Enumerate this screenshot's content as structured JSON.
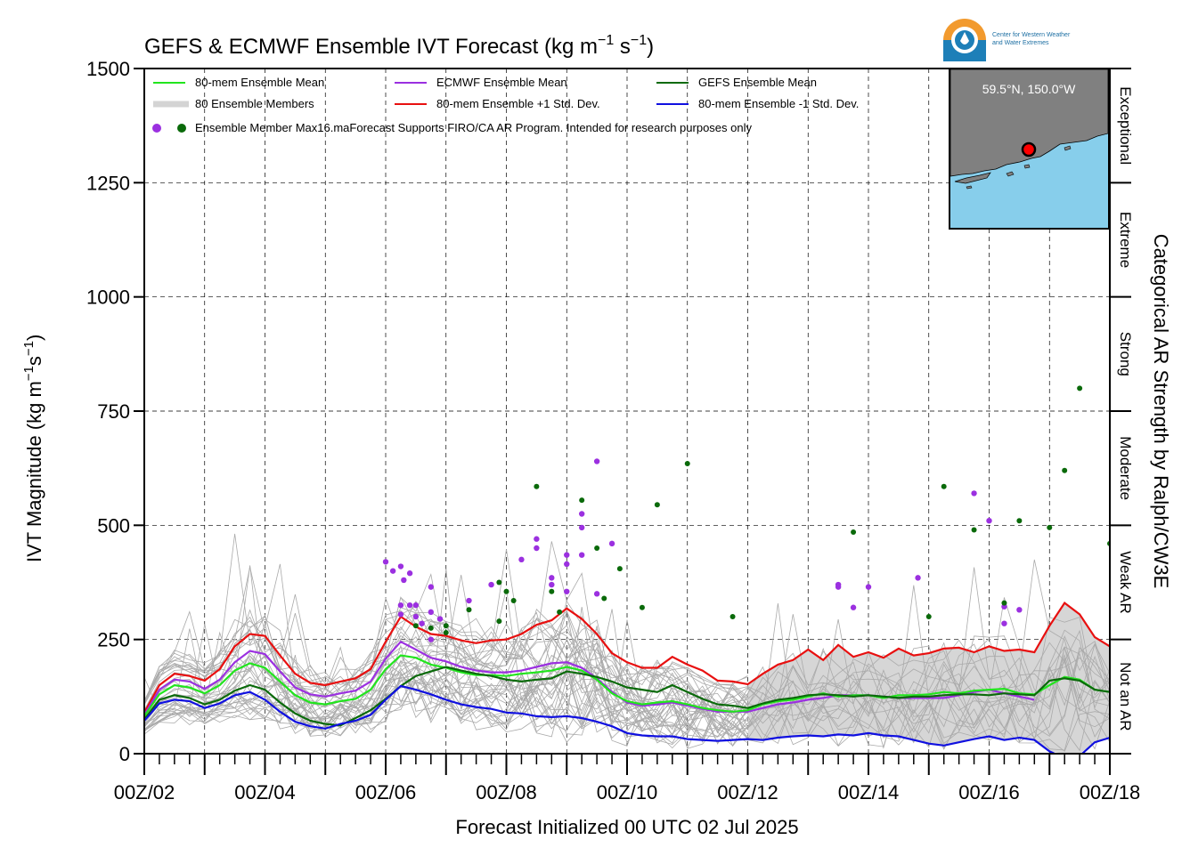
{
  "chart_data": {
    "type": "line",
    "title": "GEFS & ECMWF Ensemble IVT Forecast (kg m",
    "title_sup1": "−1",
    "title_mid": " s",
    "title_sup2": "−1",
    "title_end": ")",
    "ylabel": "IVT Magnitude (kg m",
    "ylabel_sup1": "−1",
    "ylabel_mid": "s",
    "ylabel_sup2": "−1",
    "ylabel_end": ")",
    "xlabel": "Forecast Initialized 00 UTC 02 Jul 2025",
    "right_label": "Categorical AR Strength by Ralph/CW3E",
    "ylim": [
      0,
      1500
    ],
    "xlim_days": [
      2,
      18
    ],
    "y_ticks": [
      "0",
      "250",
      "500",
      "750",
      "1000",
      "1250",
      "1500"
    ],
    "x_ticks": [
      "00Z/02",
      "00Z/04",
      "00Z/06",
      "00Z/08",
      "00Z/10",
      "00Z/12",
      "00Z/14",
      "00Z/16",
      "00Z/18"
    ],
    "categories": [
      {
        "label": "Not an AR",
        "from": 0,
        "to": 250
      },
      {
        "label": "Weak AR",
        "from": 250,
        "to": 500
      },
      {
        "label": "Moderate",
        "from": 500,
        "to": 750
      },
      {
        "label": "Strong",
        "from": 750,
        "to": 1000
      },
      {
        "label": "Extreme",
        "from": 1000,
        "to": 1250
      },
      {
        "label": "Exceptional",
        "from": 1250,
        "to": 1500
      }
    ],
    "legend": [
      {
        "label": "80-mem Ensemble Mean",
        "color": "#22e51e",
        "kind": "line"
      },
      {
        "label": "ECMWF Ensemble Mean",
        "color": "#9b30e0",
        "kind": "line"
      },
      {
        "label": "GEFS Ensemble Mean",
        "color": "#0a6a0a",
        "kind": "line"
      },
      {
        "label": "80 Ensemble Members",
        "color": "#aaaaaa",
        "kind": "members"
      },
      {
        "label": "80-mem Ensemble +1 Std. Dev.",
        "color": "#e81010",
        "kind": "line"
      },
      {
        "label": "80-mem Ensemble -1 Std. Dev.",
        "color": "#1010e0",
        "kind": "line"
      }
    ],
    "legend_note": "Ensemble Member Max16.maForecast Supports FIRO/CA AR Program. Intended for research purposes only",
    "inset_location": "59.5°N, 150.0°W",
    "logo_text_1": "Center for Western Weather",
    "logo_text_2": "and Water Extremes",
    "x_days": [
      2.0,
      2.25,
      2.5,
      2.75,
      3.0,
      3.25,
      3.5,
      3.75,
      4.0,
      4.25,
      4.5,
      4.75,
      5.0,
      5.25,
      5.5,
      5.75,
      6.0,
      6.25,
      6.5,
      6.75,
      7.0,
      7.25,
      7.5,
      7.75,
      8.0,
      8.25,
      8.5,
      8.75,
      9.0,
      9.25,
      9.5,
      9.75,
      10.0,
      10.25,
      10.5,
      10.75,
      11.0,
      11.25,
      11.5,
      11.75,
      12.0
    ],
    "series": [
      {
        "name": "80-mem Ensemble +1 Std. Dev.",
        "color": "#e81010",
        "x": [
          2.0,
          2.25,
          2.5,
          2.75,
          3.0,
          3.25,
          3.5,
          3.75,
          4.0,
          4.25,
          4.5,
          4.75,
          5.0,
          5.25,
          5.5,
          5.75,
          6.0,
          6.25,
          6.5,
          6.75,
          7.0,
          7.25,
          7.5,
          7.75,
          8.0,
          8.25,
          8.5,
          8.75,
          9.0,
          9.25,
          9.5,
          9.75,
          10.0,
          10.25,
          10.5,
          10.75,
          11.0,
          11.25,
          11.5,
          11.75,
          12.0,
          12.25,
          12.5,
          12.75,
          13.0,
          13.25,
          13.5,
          13.75,
          14.0,
          14.25,
          14.5,
          14.75,
          15.0,
          15.25,
          15.5,
          15.75,
          16.0,
          16.25,
          16.5,
          16.75,
          17.0,
          17.25,
          17.5,
          17.75,
          18.0
        ],
        "values": [
          90,
          150,
          175,
          170,
          160,
          185,
          235,
          262,
          258,
          215,
          175,
          155,
          150,
          158,
          165,
          185,
          245,
          300,
          278,
          262,
          258,
          248,
          242,
          248,
          250,
          262,
          282,
          292,
          318,
          295,
          262,
          220,
          200,
          188,
          188,
          212,
          195,
          182,
          160,
          158,
          152,
          175,
          195,
          205,
          228,
          205,
          238,
          212,
          222,
          210,
          230,
          215,
          220,
          230,
          232,
          222,
          235,
          225,
          228,
          222,
          280,
          330,
          305,
          255,
          235
        ]
      },
      {
        "name": "ECMWF Ensemble Mean",
        "color": "#9b30e0",
        "x": [
          2.0,
          2.25,
          2.5,
          2.75,
          3.0,
          3.25,
          3.5,
          3.75,
          4.0,
          4.25,
          4.5,
          4.75,
          5.0,
          5.25,
          5.5,
          5.75,
          6.0,
          6.25,
          6.5,
          6.75,
          7.0,
          7.25,
          7.5,
          7.75,
          8.0,
          8.25,
          8.5,
          8.75,
          9.0,
          9.25,
          9.5,
          9.75,
          10.0,
          10.25,
          10.5,
          10.75,
          11.0,
          11.25,
          11.5,
          11.75,
          12.0,
          12.25,
          12.5,
          12.75,
          13.0,
          13.25,
          13.5,
          13.75,
          14.0,
          14.25,
          14.5,
          14.75,
          15.0,
          15.25,
          15.5,
          15.75,
          16.0,
          16.25,
          16.5,
          16.75
        ],
        "values": [
          85,
          140,
          162,
          158,
          142,
          162,
          200,
          225,
          218,
          180,
          145,
          130,
          125,
          132,
          138,
          158,
          208,
          245,
          228,
          210,
          202,
          190,
          182,
          178,
          178,
          182,
          190,
          198,
          200,
          188,
          165,
          135,
          112,
          105,
          108,
          112,
          105,
          98,
          92,
          92,
          92,
          100,
          108,
          112,
          118,
          122,
          128,
          128,
          128,
          125,
          122,
          122,
          122,
          122,
          128,
          135,
          140,
          132,
          125,
          118
        ]
      },
      {
        "name": "80-mem Ensemble Mean",
        "color": "#22e51e",
        "x": [
          2.0,
          2.25,
          2.5,
          2.75,
          3.0,
          3.25,
          3.5,
          3.75,
          4.0,
          4.25,
          4.5,
          4.75,
          5.0,
          5.25,
          5.5,
          5.75,
          6.0,
          6.25,
          6.5,
          6.75,
          7.0,
          7.25,
          7.5,
          7.75,
          8.0,
          8.25,
          8.5,
          8.75,
          9.0,
          9.25,
          9.5,
          9.75,
          10.0,
          10.25,
          10.5,
          10.75,
          11.0,
          11.25,
          11.5,
          11.75,
          12.0,
          12.25,
          12.5,
          12.75,
          13.0,
          13.25,
          13.5,
          13.75,
          14.0,
          14.25,
          14.5,
          14.75,
          15.0,
          15.25,
          15.5,
          15.75,
          16.0,
          16.25,
          16.5,
          16.75,
          17.0,
          17.25,
          17.5,
          17.75,
          18.0
        ],
        "values": [
          82,
          130,
          150,
          145,
          132,
          150,
          182,
          198,
          188,
          158,
          128,
          112,
          108,
          115,
          120,
          140,
          185,
          215,
          210,
          195,
          188,
          178,
          172,
          172,
          170,
          175,
          178,
          182,
          190,
          182,
          162,
          132,
          115,
          108,
          112,
          115,
          108,
          100,
          95,
          92,
          95,
          108,
          115,
          118,
          125,
          132,
          125,
          128,
          128,
          122,
          128,
          128,
          130,
          135,
          132,
          138,
          140,
          142,
          132,
          130,
          150,
          168,
          162,
          140,
          135
        ]
      },
      {
        "name": "GEFS Ensemble Mean",
        "color": "#0a6a0a",
        "x": [
          2.0,
          2.25,
          2.5,
          2.75,
          3.0,
          3.25,
          3.5,
          3.75,
          4.0,
          4.25,
          4.5,
          4.75,
          5.0,
          5.25,
          5.5,
          5.75,
          6.0,
          6.25,
          6.5,
          6.75,
          7.0,
          7.25,
          7.5,
          7.75,
          8.0,
          8.25,
          8.5,
          8.75,
          9.0,
          9.25,
          9.5,
          9.75,
          10.0,
          10.25,
          10.5,
          10.75,
          11.0,
          11.25,
          11.5,
          11.75,
          12.0,
          12.25,
          12.5,
          12.75,
          13.0,
          13.25,
          13.5,
          13.75,
          14.0,
          14.25,
          14.5,
          14.75,
          15.0,
          15.25,
          15.5,
          15.75,
          16.0,
          16.25,
          16.5,
          16.75,
          17.0,
          17.25,
          17.5,
          17.75,
          18.0
        ],
        "values": [
          75,
          118,
          128,
          122,
          108,
          118,
          138,
          150,
          140,
          112,
          88,
          72,
          65,
          62,
          78,
          95,
          120,
          148,
          170,
          180,
          190,
          182,
          175,
          170,
          162,
          158,
          162,
          165,
          180,
          175,
          168,
          158,
          145,
          140,
          135,
          150,
          135,
          120,
          108,
          105,
          100,
          110,
          118,
          122,
          128,
          130,
          128,
          125,
          128,
          125,
          122,
          125,
          125,
          128,
          130,
          130,
          128,
          132,
          130,
          128,
          160,
          165,
          160,
          140,
          135
        ]
      },
      {
        "name": "80-mem Ensemble -1 Std. Dev.",
        "color": "#1010e0",
        "x": [
          2.0,
          2.25,
          2.5,
          2.75,
          3.0,
          3.25,
          3.5,
          3.75,
          4.0,
          4.25,
          4.5,
          4.75,
          5.0,
          5.25,
          5.5,
          5.75,
          6.0,
          6.25,
          6.5,
          6.75,
          7.0,
          7.25,
          7.5,
          7.75,
          8.0,
          8.25,
          8.5,
          8.75,
          9.0,
          9.25,
          9.5,
          9.75,
          10.0,
          10.25,
          10.5,
          10.75,
          11.0,
          11.25,
          11.5,
          11.75,
          12.0,
          12.25,
          12.5,
          12.75,
          13.0,
          13.25,
          13.5,
          13.75,
          14.0,
          14.25,
          14.5,
          14.75,
          15.0,
          15.25,
          15.5,
          15.75,
          16.0,
          16.25,
          16.5,
          16.75,
          17.0,
          17.25,
          17.5,
          17.75,
          18.0
        ],
        "values": [
          72,
          110,
          118,
          115,
          100,
          110,
          128,
          135,
          118,
          92,
          70,
          60,
          55,
          65,
          72,
          85,
          118,
          148,
          140,
          130,
          118,
          108,
          102,
          98,
          90,
          88,
          82,
          80,
          82,
          78,
          70,
          60,
          45,
          40,
          38,
          38,
          32,
          30,
          28,
          30,
          32,
          30,
          35,
          38,
          40,
          38,
          42,
          40,
          45,
          40,
          38,
          30,
          22,
          18,
          25,
          32,
          38,
          30,
          35,
          30,
          5,
          -10,
          -5,
          25,
          35
        ]
      }
    ],
    "max_points_ecmwf": [
      {
        "x": 6.0,
        "y": 420
      },
      {
        "x": 6.12,
        "y": 400
      },
      {
        "x": 6.25,
        "y": 410
      },
      {
        "x": 6.3,
        "y": 380
      },
      {
        "x": 6.4,
        "y": 395
      },
      {
        "x": 6.4,
        "y": 325
      },
      {
        "x": 6.25,
        "y": 325
      },
      {
        "x": 6.25,
        "y": 305
      },
      {
        "x": 6.5,
        "y": 325
      },
      {
        "x": 6.5,
        "y": 300
      },
      {
        "x": 6.6,
        "y": 285
      },
      {
        "x": 6.75,
        "y": 365
      },
      {
        "x": 6.75,
        "y": 310
      },
      {
        "x": 6.75,
        "y": 250
      },
      {
        "x": 6.9,
        "y": 295
      },
      {
        "x": 7.38,
        "y": 335
      },
      {
        "x": 7.75,
        "y": 370
      },
      {
        "x": 8.25,
        "y": 425
      },
      {
        "x": 8.5,
        "y": 470
      },
      {
        "x": 8.5,
        "y": 450
      },
      {
        "x": 8.75,
        "y": 385
      },
      {
        "x": 8.75,
        "y": 370
      },
      {
        "x": 9.0,
        "y": 435
      },
      {
        "x": 9.0,
        "y": 415
      },
      {
        "x": 9.0,
        "y": 355
      },
      {
        "x": 9.25,
        "y": 525
      },
      {
        "x": 9.25,
        "y": 495
      },
      {
        "x": 9.25,
        "y": 435
      },
      {
        "x": 9.5,
        "y": 640
      },
      {
        "x": 9.5,
        "y": 350
      },
      {
        "x": 9.75,
        "y": 460
      },
      {
        "x": 13.5,
        "y": 370
      },
      {
        "x": 13.5,
        "y": 365
      },
      {
        "x": 13.75,
        "y": 320
      },
      {
        "x": 14.0,
        "y": 365
      },
      {
        "x": 14.82,
        "y": 385
      },
      {
        "x": 15.75,
        "y": 570
      },
      {
        "x": 16.0,
        "y": 510
      },
      {
        "x": 16.25,
        "y": 322
      },
      {
        "x": 16.25,
        "y": 285
      },
      {
        "x": 16.5,
        "y": 315
      }
    ],
    "max_points_gefs": [
      {
        "x": 6.5,
        "y": 280
      },
      {
        "x": 6.75,
        "y": 275
      },
      {
        "x": 7.0,
        "y": 280
      },
      {
        "x": 7.0,
        "y": 265
      },
      {
        "x": 7.38,
        "y": 315
      },
      {
        "x": 7.88,
        "y": 375
      },
      {
        "x": 7.88,
        "y": 290
      },
      {
        "x": 8.0,
        "y": 355
      },
      {
        "x": 8.12,
        "y": 335
      },
      {
        "x": 8.5,
        "y": 585
      },
      {
        "x": 8.75,
        "y": 355
      },
      {
        "x": 8.88,
        "y": 310
      },
      {
        "x": 9.25,
        "y": 555
      },
      {
        "x": 9.5,
        "y": 450
      },
      {
        "x": 9.62,
        "y": 340
      },
      {
        "x": 9.88,
        "y": 405
      },
      {
        "x": 10.25,
        "y": 320
      },
      {
        "x": 10.5,
        "y": 545
      },
      {
        "x": 11.0,
        "y": 635
      },
      {
        "x": 11.75,
        "y": 300
      },
      {
        "x": 13.75,
        "y": 485
      },
      {
        "x": 15.0,
        "y": 300
      },
      {
        "x": 15.25,
        "y": 585
      },
      {
        "x": 15.75,
        "y": 490
      },
      {
        "x": 16.25,
        "y": 330
      },
      {
        "x": 16.5,
        "y": 510
      },
      {
        "x": 17.0,
        "y": 495
      },
      {
        "x": 17.25,
        "y": 620
      },
      {
        "x": 17.5,
        "y": 800
      },
      {
        "x": 18.0,
        "y": 460
      }
    ]
  }
}
